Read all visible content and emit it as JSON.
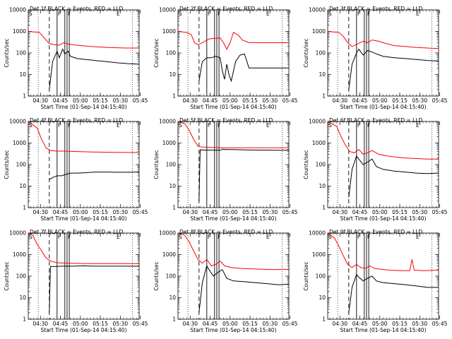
{
  "figure": {
    "xlabel": "Start Time (01-Sep-14 04:15:40)",
    "ylabel": "Counts/sec",
    "xticks": [
      "04:30",
      "04:45",
      "05:00",
      "05:15",
      "05:30",
      "05:45"
    ],
    "yticks": [
      "1",
      "10",
      "100",
      "1000",
      "10000"
    ],
    "markers": [
      "S",
      "F",
      "F",
      "E"
    ],
    "colors": {
      "events": "#000000",
      "lld": "#ff0000"
    }
  },
  "chart_data": [
    {
      "type": "line",
      "title": "Det 1f BLACK = Events, RED = LLD",
      "xlabel": "Start Time (01-Sep-14 04:15:40)",
      "ylabel": "Counts/sec",
      "xlim": [
        0,
        100
      ],
      "ylim": [
        1,
        10000
      ],
      "yscale": "log",
      "dashed_x": 19,
      "vlines": [
        26,
        33,
        35,
        37
      ],
      "dotted_x": [
        9,
        94
      ],
      "series": [
        {
          "name": "LLD",
          "color": "#ff0000",
          "x": [
            0,
            10,
            12,
            16,
            19,
            24,
            28,
            32,
            36,
            40,
            48,
            56,
            64,
            72,
            80,
            88,
            96,
            100
          ],
          "y": [
            1000,
            900,
            700,
            400,
            270,
            240,
            230,
            300,
            260,
            240,
            220,
            200,
            190,
            180,
            175,
            170,
            170,
            170
          ]
        },
        {
          "name": "Events",
          "color": "#000000",
          "x": [
            19,
            22,
            26,
            28,
            31,
            33,
            36,
            38,
            44,
            52,
            60,
            70,
            80,
            90,
            100
          ],
          "y": [
            2,
            40,
            120,
            60,
            150,
            90,
            120,
            70,
            55,
            50,
            45,
            40,
            35,
            32,
            30
          ]
        }
      ]
    },
    {
      "type": "line",
      "title": "Det 2f BLACK = Events, RED = LLD",
      "xlabel": "Start Time (01-Sep-14 04:15:40)",
      "ylabel": "Counts/sec",
      "xlim": [
        0,
        100
      ],
      "ylim": [
        1,
        10000
      ],
      "yscale": "log",
      "dashed_x": 19,
      "vlines": [
        26,
        33,
        35,
        37
      ],
      "dotted_x": [
        9,
        94
      ],
      "series": [
        {
          "name": "LLD",
          "color": "#ff0000",
          "x": [
            0,
            8,
            12,
            15,
            18,
            22,
            28,
            34,
            38,
            41,
            44,
            47,
            50,
            54,
            58,
            64,
            70,
            80,
            90,
            100
          ],
          "y": [
            1000,
            900,
            700,
            300,
            240,
            300,
            450,
            480,
            500,
            300,
            150,
            300,
            900,
            700,
            400,
            300,
            300,
            300,
            300,
            300
          ]
        },
        {
          "name": "Events",
          "color": "#000000",
          "x": [
            19,
            22,
            26,
            30,
            34,
            38,
            40,
            42,
            44,
            46,
            48,
            52,
            56,
            60,
            64,
            70,
            80,
            90,
            100
          ],
          "y": [
            5,
            40,
            60,
            60,
            70,
            60,
            15,
            6,
            30,
            10,
            5,
            40,
            80,
            90,
            20,
            20,
            20,
            20,
            20
          ]
        }
      ]
    },
    {
      "type": "line",
      "title": "Det 3f BLACK = Events, RED = LLD",
      "xlabel": "Start Time (01-Sep-14 04:15:40)",
      "ylabel": "Counts/sec",
      "xlim": [
        0,
        100
      ],
      "ylim": [
        1,
        10000
      ],
      "yscale": "log",
      "dashed_x": 19,
      "vlines": [
        26,
        33,
        35,
        37
      ],
      "dotted_x": [
        9,
        94
      ],
      "series": [
        {
          "name": "LLD",
          "color": "#ff0000",
          "x": [
            0,
            10,
            14,
            18,
            22,
            28,
            32,
            36,
            40,
            46,
            52,
            60,
            70,
            80,
            90,
            100
          ],
          "y": [
            1000,
            900,
            600,
            300,
            200,
            280,
            350,
            300,
            400,
            350,
            280,
            220,
            200,
            180,
            170,
            160
          ]
        },
        {
          "name": "Events",
          "color": "#000000",
          "x": [
            19,
            22,
            26,
            28,
            32,
            36,
            40,
            44,
            50,
            60,
            70,
            80,
            90,
            100
          ],
          "y": [
            2,
            30,
            100,
            150,
            80,
            130,
            110,
            90,
            70,
            60,
            55,
            50,
            45,
            42
          ]
        }
      ]
    },
    {
      "type": "line",
      "title": "Det 4f BLACK = Events, RED = LLD",
      "xlabel": "Start Time (01-Sep-14 04:15:40)",
      "ylabel": "Counts/sec",
      "xlim": [
        0,
        100
      ],
      "ylim": [
        1,
        10000
      ],
      "yscale": "log",
      "dashed_x": 19,
      "vlines": [
        26,
        33,
        35,
        37
      ],
      "dotted_x": [
        9,
        94
      ],
      "series": [
        {
          "name": "LLD",
          "color": "#ff0000",
          "x": [
            0,
            8,
            12,
            16,
            20,
            26,
            34,
            44,
            60,
            80,
            100
          ],
          "y": [
            10000,
            5000,
            1500,
            600,
            450,
            420,
            420,
            400,
            380,
            370,
            360
          ]
        },
        {
          "name": "Events",
          "color": "#000000",
          "x": [
            19,
            22,
            26,
            30,
            34,
            38,
            44,
            52,
            60,
            70,
            80,
            90,
            100
          ],
          "y": [
            20,
            25,
            30,
            30,
            35,
            40,
            40,
            42,
            45,
            45,
            44,
            44,
            45
          ]
        }
      ]
    },
    {
      "type": "line",
      "title": "Det 5f BLACK = Events, RED = LLD",
      "xlabel": "Start Time (01-Sep-14 04:15:40)",
      "ylabel": "Counts/sec",
      "xlim": [
        0,
        100
      ],
      "ylim": [
        1,
        10000
      ],
      "yscale": "log",
      "dashed_x": 19,
      "vlines": [
        26,
        33,
        35,
        37
      ],
      "dotted_x": [
        9,
        94
      ],
      "series": [
        {
          "name": "LLD",
          "color": "#ff0000",
          "x": [
            0,
            6,
            10,
            14,
            18,
            22,
            30,
            40,
            50,
            60,
            70,
            80,
            90,
            100
          ],
          "y": [
            10000,
            8000,
            4000,
            1500,
            700,
            650,
            620,
            600,
            600,
            600,
            600,
            600,
            600,
            600
          ]
        },
        {
          "name": "Events",
          "color": "#000000",
          "x": [
            19,
            20,
            24,
            30,
            38,
            40,
            44,
            50,
            60,
            70,
            80,
            90,
            100
          ],
          "y": [
            2,
            480,
            470,
            470,
            460,
            520,
            500,
            500,
            480,
            470,
            470,
            460,
            460
          ]
        }
      ]
    },
    {
      "type": "line",
      "title": "Det 6f BLACK = Events, RED = LLD",
      "xlabel": "Start Time (01-Sep-14 04:15:40)",
      "ylabel": "Counts/sec",
      "xlim": [
        0,
        100
      ],
      "ylim": [
        1,
        10000
      ],
      "yscale": "log",
      "dashed_x": 19,
      "vlines": [
        26,
        33,
        35,
        37
      ],
      "dotted_x": [
        9,
        94
      ],
      "series": [
        {
          "name": "LLD",
          "color": "#ff0000",
          "x": [
            0,
            8,
            12,
            16,
            20,
            24,
            28,
            32,
            36,
            40,
            46,
            54,
            62,
            70,
            80,
            90,
            100
          ],
          "y": [
            10000,
            6000,
            2000,
            800,
            400,
            350,
            500,
            300,
            350,
            450,
            300,
            250,
            220,
            200,
            190,
            180,
            180
          ]
        },
        {
          "name": "Events",
          "color": "#000000",
          "x": [
            19,
            22,
            26,
            28,
            32,
            36,
            40,
            44,
            50,
            60,
            70,
            80,
            90,
            100
          ],
          "y": [
            3,
            60,
            250,
            180,
            100,
            130,
            180,
            80,
            60,
            50,
            45,
            40,
            38,
            40
          ]
        }
      ]
    },
    {
      "type": "line",
      "title": "Det 7f BLACK = Events, RED = LLD",
      "xlabel": "Start Time (01-Sep-14 04:15:40)",
      "ylabel": "Counts/sec",
      "xlim": [
        0,
        100
      ],
      "ylim": [
        1,
        10000
      ],
      "yscale": "log",
      "dashed_x": 19,
      "vlines": [
        26,
        33,
        35,
        37
      ],
      "dotted_x": [
        9,
        94
      ],
      "series": [
        {
          "name": "LLD",
          "color": "#ff0000",
          "x": [
            0,
            4,
            8,
            12,
            16,
            20,
            26,
            34,
            44,
            60,
            80,
            100
          ],
          "y": [
            10000,
            8000,
            3000,
            1500,
            700,
            500,
            420,
            400,
            390,
            380,
            380,
            380
          ]
        },
        {
          "name": "Events",
          "color": "#000000",
          "x": [
            19,
            20,
            24,
            30,
            40,
            50,
            60,
            70,
            80,
            90,
            100
          ],
          "y": [
            2,
            280,
            280,
            290,
            290,
            300,
            290,
            290,
            290,
            290,
            290
          ]
        }
      ]
    },
    {
      "type": "line",
      "title": "Det 8f BLACK = Events, RED = LLD",
      "xlabel": "Start Time (01-Sep-14 04:15:40)",
      "ylabel": "Counts/sec",
      "xlim": [
        0,
        100
      ],
      "ylim": [
        1,
        10000
      ],
      "yscale": "log",
      "dashed_x": 19,
      "vlines": [
        26,
        33,
        35,
        37
      ],
      "dotted_x": [
        9,
        94
      ],
      "series": [
        {
          "name": "LLD",
          "color": "#ff0000",
          "x": [
            0,
            6,
            10,
            14,
            18,
            22,
            26,
            30,
            34,
            38,
            42,
            48,
            56,
            66,
            76,
            86,
            100
          ],
          "y": [
            10000,
            8000,
            4000,
            1500,
            600,
            400,
            600,
            300,
            350,
            500,
            300,
            250,
            230,
            220,
            210,
            200,
            210
          ]
        },
        {
          "name": "Events",
          "color": "#000000",
          "x": [
            19,
            22,
            26,
            28,
            32,
            36,
            40,
            44,
            50,
            60,
            70,
            80,
            90,
            100
          ],
          "y": [
            2,
            50,
            300,
            200,
            100,
            150,
            200,
            80,
            60,
            55,
            50,
            45,
            40,
            42
          ]
        }
      ]
    },
    {
      "type": "line",
      "title": "Det 9f BLACK = Events, RED = LLD",
      "xlabel": "Start Time (01-Sep-14 04:15:40)",
      "ylabel": "Counts/sec",
      "xlim": [
        0,
        100
      ],
      "ylim": [
        1,
        10000
      ],
      "yscale": "log",
      "dashed_x": 19,
      "vlines": [
        26,
        33,
        35,
        37
      ],
      "dotted_x": [
        9,
        94
      ],
      "series": [
        {
          "name": "LLD",
          "color": "#ff0000",
          "x": [
            0,
            6,
            10,
            14,
            18,
            22,
            26,
            30,
            34,
            38,
            42,
            48,
            56,
            66,
            74,
            76,
            78,
            86,
            100
          ],
          "y": [
            10000,
            6000,
            2500,
            900,
            350,
            250,
            350,
            250,
            230,
            300,
            230,
            210,
            190,
            180,
            180,
            600,
            190,
            180,
            190
          ]
        },
        {
          "name": "Events",
          "color": "#000000",
          "x": [
            19,
            22,
            26,
            28,
            32,
            36,
            40,
            44,
            50,
            60,
            70,
            80,
            90,
            100
          ],
          "y": [
            2,
            30,
            120,
            90,
            60,
            80,
            100,
            60,
            50,
            45,
            40,
            35,
            30,
            30
          ]
        }
      ]
    }
  ]
}
